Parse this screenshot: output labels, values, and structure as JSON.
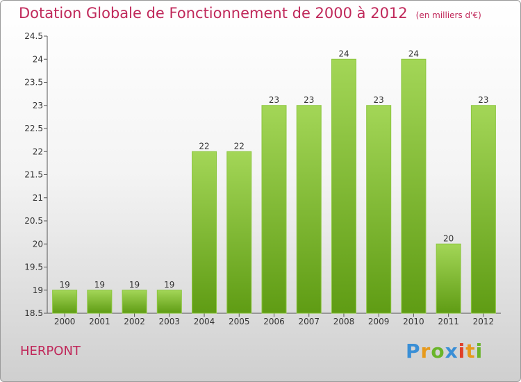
{
  "header": {
    "title": "Dotation Globale de Fonctionnement de 2000 à 2012",
    "unit": "(en milliers d'€)"
  },
  "commune": "HERPONT",
  "logo": {
    "letters": [
      "P",
      "r",
      "o",
      "x",
      "i",
      "t",
      "i"
    ]
  },
  "chart_data": {
    "type": "bar",
    "title": "Dotation Globale de Fonctionnement de 2000 à 2012",
    "subtitle": "(en milliers d'€)",
    "categories": [
      "2000",
      "2001",
      "2002",
      "2003",
      "2004",
      "2005",
      "2006",
      "2007",
      "2008",
      "2009",
      "2010",
      "2011",
      "2012"
    ],
    "values": [
      19,
      19,
      19,
      19,
      22,
      22,
      23,
      23,
      24,
      23,
      24,
      20,
      23
    ],
    "ylim": [
      18.5,
      24.5
    ],
    "yticks": [
      "18.5",
      "19",
      "19.5",
      "20",
      "20.5",
      "21",
      "21.5",
      "22",
      "22.5",
      "23",
      "23.5",
      "24",
      "24.5"
    ],
    "grid": false,
    "bar_color": "#7dbb2e"
  }
}
